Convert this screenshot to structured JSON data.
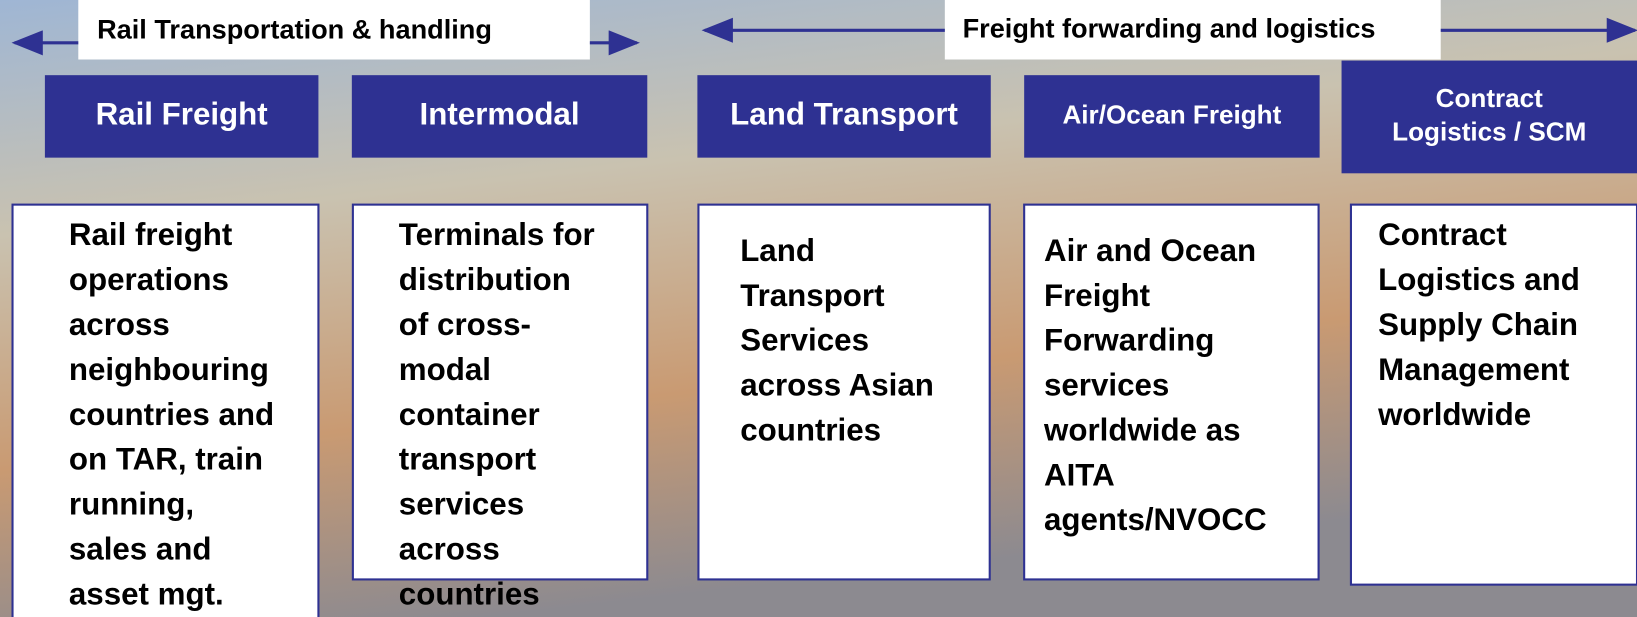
{
  "header": {
    "left": "Rail Transportation & handling",
    "right": "Freight forwarding and logistics"
  },
  "columns": [
    {
      "title": "Rail Freight",
      "lines": [
        "Rail freight",
        "operations",
        "across",
        "neighbouring",
        "countries and",
        "on TAR, train",
        "running,",
        "sales and",
        "asset mgt."
      ]
    },
    {
      "title": "Intermodal",
      "lines": [
        "Terminals for",
        "distribution",
        "of cross-",
        "modal",
        "container",
        "transport",
        "services",
        "across",
        "countries"
      ]
    },
    {
      "title": "Land Transport",
      "lines": [
        "Land",
        "Transport",
        "Services",
        "across Asian",
        "countries"
      ]
    },
    {
      "title": "Air/Ocean Freight",
      "lines": [
        "Air and Ocean",
        "Freight",
        "Forwarding",
        "services",
        "worldwide as",
        "AITA",
        "agents/NVOCC"
      ]
    },
    {
      "title": [
        "Contract",
        "Logistics / SCM"
      ],
      "lines": [
        "Contract",
        "Logistics and",
        "Supply Chain",
        "Management",
        "worldwide"
      ]
    }
  ]
}
